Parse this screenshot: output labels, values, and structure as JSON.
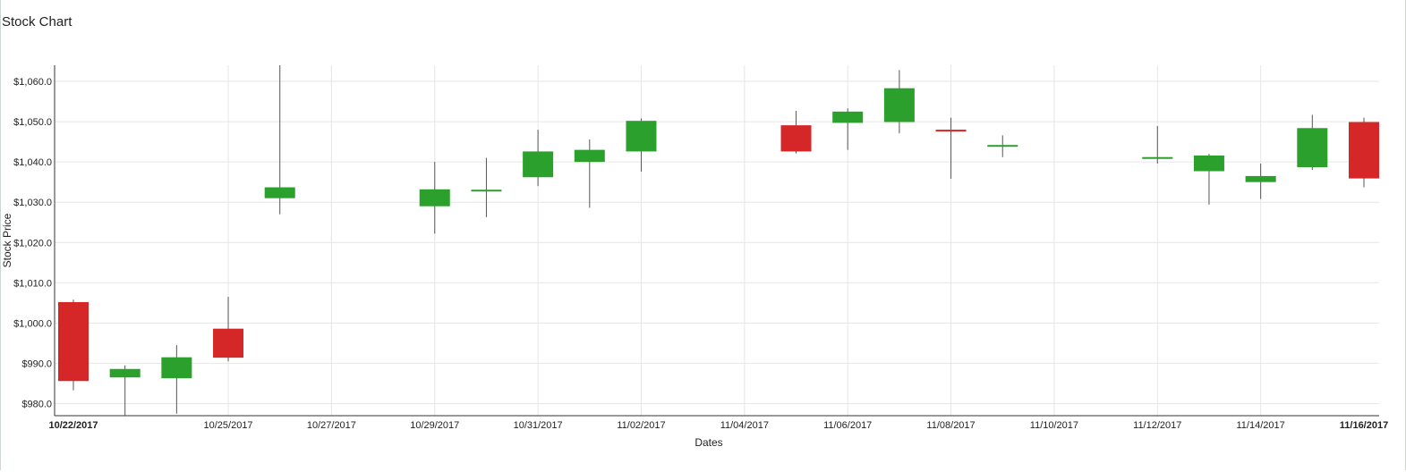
{
  "title": "Stock Chart",
  "chart_data": {
    "type": "candlestick",
    "title": "Stock Chart",
    "xlabel": "Dates",
    "ylabel": "Stock Price",
    "ylim": [
      977,
      1064
    ],
    "y_ticks": [
      "$980.0",
      "$990.0",
      "$1,000.0",
      "$1,010.0",
      "$1,020.0",
      "$1,030.0",
      "$1,040.0",
      "$1,050.0",
      "$1,060.0"
    ],
    "y_tick_values": [
      980,
      990,
      1000,
      1010,
      1020,
      1030,
      1040,
      1050,
      1060
    ],
    "x_ticks": [
      {
        "date": "2017-10-22",
        "label": "10/22/2017",
        "bold": true
      },
      {
        "date": "2017-10-25",
        "label": "10/25/2017",
        "bold": false
      },
      {
        "date": "2017-10-27",
        "label": "10/27/2017",
        "bold": false
      },
      {
        "date": "2017-10-29",
        "label": "10/29/2017",
        "bold": false
      },
      {
        "date": "2017-10-31",
        "label": "10/31/2017",
        "bold": false
      },
      {
        "date": "2017-11-02",
        "label": "11/02/2017",
        "bold": false
      },
      {
        "date": "2017-11-04",
        "label": "11/04/2017",
        "bold": false
      },
      {
        "date": "2017-11-06",
        "label": "11/06/2017",
        "bold": false
      },
      {
        "date": "2017-11-08",
        "label": "11/08/2017",
        "bold": false
      },
      {
        "date": "2017-11-10",
        "label": "11/10/2017",
        "bold": false
      },
      {
        "date": "2017-11-12",
        "label": "11/12/2017",
        "bold": false
      },
      {
        "date": "2017-11-14",
        "label": "11/14/2017",
        "bold": false
      },
      {
        "date": "2017-11-16",
        "label": "11/16/2017",
        "bold": true
      }
    ],
    "grid": true,
    "colors": {
      "up": "#2ca02c",
      "down": "#d62728",
      "wick": "#555555",
      "grid": "#e6e6e6"
    },
    "candles": [
      {
        "date": "2017-10-22",
        "open": 1005.2,
        "high": 1005.8,
        "low": 983.3,
        "close": 985.6
      },
      {
        "date": "2017-10-23",
        "open": 986.5,
        "high": 989.5,
        "low": 977.0,
        "close": 988.6
      },
      {
        "date": "2017-10-24",
        "open": 986.3,
        "high": 994.5,
        "low": 977.5,
        "close": 991.5
      },
      {
        "date": "2017-10-25",
        "open": 998.6,
        "high": 1006.5,
        "low": 990.5,
        "close": 991.4
      },
      {
        "date": "2017-10-26",
        "open": 1031.0,
        "high": 1064.0,
        "low": 1027.0,
        "close": 1033.7
      },
      {
        "date": "2017-10-29",
        "open": 1029.0,
        "high": 1040.0,
        "low": 1022.2,
        "close": 1033.2
      },
      {
        "date": "2017-10-30",
        "open": 1033.0,
        "high": 1041.0,
        "low": 1026.3,
        "close": 1033.1
      },
      {
        "date": "2017-10-31",
        "open": 1036.2,
        "high": 1048.0,
        "low": 1034.0,
        "close": 1042.6
      },
      {
        "date": "2017-11-01",
        "open": 1040.0,
        "high": 1045.6,
        "low": 1028.6,
        "close": 1043.0
      },
      {
        "date": "2017-11-02",
        "open": 1042.6,
        "high": 1050.8,
        "low": 1037.6,
        "close": 1050.2
      },
      {
        "date": "2017-11-05",
        "open": 1049.1,
        "high": 1052.7,
        "low": 1042.1,
        "close": 1042.6
      },
      {
        "date": "2017-11-06",
        "open": 1049.7,
        "high": 1053.3,
        "low": 1043.0,
        "close": 1052.5
      },
      {
        "date": "2017-11-07",
        "open": 1049.9,
        "high": 1062.8,
        "low": 1047.1,
        "close": 1058.3
      },
      {
        "date": "2017-11-08",
        "open": 1048.0,
        "high": 1051.0,
        "low": 1035.8,
        "close": 1047.7
      },
      {
        "date": "2017-11-09",
        "open": 1043.8,
        "high": 1046.6,
        "low": 1041.2,
        "close": 1044.2
      },
      {
        "date": "2017-11-12",
        "open": 1040.8,
        "high": 1048.9,
        "low": 1039.6,
        "close": 1041.2
      },
      {
        "date": "2017-11-13",
        "open": 1037.7,
        "high": 1042.0,
        "low": 1029.4,
        "close": 1041.6
      },
      {
        "date": "2017-11-14",
        "open": 1035.0,
        "high": 1039.6,
        "low": 1030.8,
        "close": 1036.5
      },
      {
        "date": "2017-11-15",
        "open": 1038.7,
        "high": 1051.7,
        "low": 1038.0,
        "close": 1048.4
      },
      {
        "date": "2017-11-16",
        "open": 1049.9,
        "high": 1051.0,
        "low": 1033.7,
        "close": 1035.9
      }
    ]
  }
}
